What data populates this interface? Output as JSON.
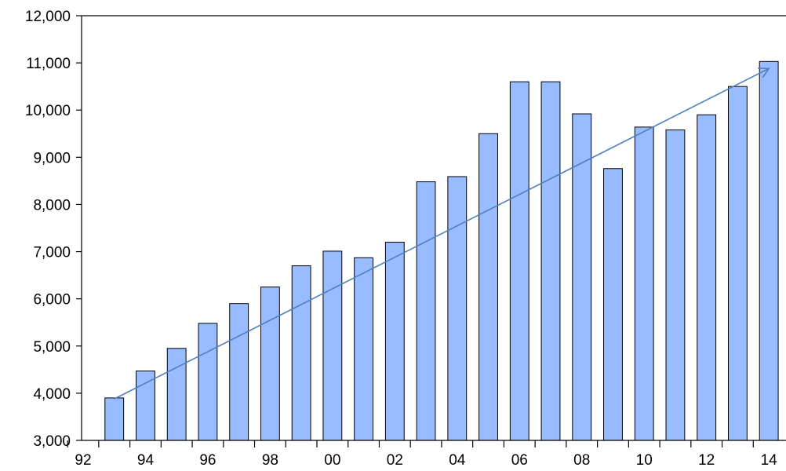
{
  "chart_data": {
    "type": "bar",
    "title": "",
    "xlabel": "",
    "ylabel": "",
    "ylim": [
      3000,
      12000
    ],
    "y_ticks": [
      3000,
      4000,
      5000,
      6000,
      7000,
      8000,
      9000,
      10000,
      11000,
      12000
    ],
    "y_tick_labels": [
      "3,000",
      "4,000",
      "5,000",
      "6,000",
      "7,000",
      "8,000",
      "9,000",
      "10,000",
      "11,000",
      "12,000"
    ],
    "x_range": [
      1992,
      2014
    ],
    "x_tick_labels": [
      {
        "year": 1992,
        "label": "92"
      },
      {
        "year": 1994,
        "label": "94"
      },
      {
        "year": 1996,
        "label": "96"
      },
      {
        "year": 1998,
        "label": "98"
      },
      {
        "year": 2000,
        "label": "00"
      },
      {
        "year": 2002,
        "label": "02"
      },
      {
        "year": 2004,
        "label": "04"
      },
      {
        "year": 2006,
        "label": "06"
      },
      {
        "year": 2008,
        "label": "08"
      },
      {
        "year": 2010,
        "label": "10"
      },
      {
        "year": 2012,
        "label": "12"
      },
      {
        "year": 2014,
        "label": "14"
      }
    ],
    "categories": [
      1993,
      1994,
      1995,
      1996,
      1997,
      1998,
      1999,
      2000,
      2001,
      2002,
      2003,
      2004,
      2005,
      2006,
      2007,
      2008,
      2009,
      2010,
      2011,
      2012,
      2013,
      2014
    ],
    "values": [
      3900,
      4470,
      4950,
      5480,
      5900,
      6250,
      6700,
      7010,
      6870,
      7200,
      8480,
      8590,
      9500,
      10600,
      10600,
      9920,
      8760,
      9640,
      9580,
      9900,
      10500,
      11030
    ],
    "trend_arrow": {
      "x": [
        1993,
        2014
      ],
      "y": [
        3880,
        10880
      ]
    },
    "grid": false,
    "colors": {
      "bar_fill": "#99BBFF",
      "bar_edge": "#000000",
      "trend": "#4F81BD",
      "axis": "#000000"
    }
  }
}
